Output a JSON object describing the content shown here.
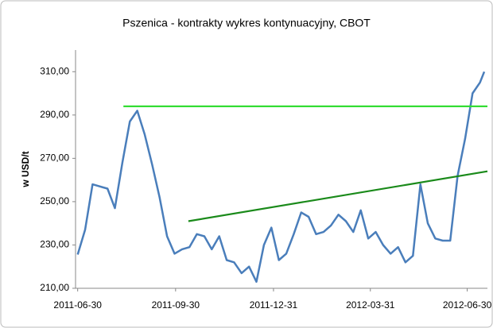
{
  "chart_data": {
    "type": "line",
    "title": "Pszenica - kontrakty wykres kontynuacyjny, CBOT",
    "y_label": "w USD/t",
    "xlim": [
      "2011-06-28",
      "2012-07-19"
    ],
    "xticks": [
      "2011-06-30",
      "2011-09-30",
      "2011-12-31",
      "2012-03-31",
      "2012-06-30"
    ],
    "ylim": [
      210,
      320
    ],
    "yticks": [
      {
        "value": 210,
        "label": "210,00"
      },
      {
        "value": 230,
        "label": "230,00"
      },
      {
        "value": 250,
        "label": "250,00"
      },
      {
        "value": 270,
        "label": "270,00"
      },
      {
        "value": 290,
        "label": "290,00"
      },
      {
        "value": 310,
        "label": "310,00"
      }
    ],
    "grid": false,
    "series": [
      {
        "color": "#4a7ebb",
        "x": [
          "2011-06-30",
          "2011-07-07",
          "2011-07-14",
          "2011-07-21",
          "2011-07-28",
          "2011-08-04",
          "2011-08-11",
          "2011-08-18",
          "2011-08-25",
          "2011-09-01",
          "2011-09-08",
          "2011-09-15",
          "2011-09-22",
          "2011-09-29",
          "2011-10-06",
          "2011-10-13",
          "2011-10-20",
          "2011-10-27",
          "2011-11-03",
          "2011-11-10",
          "2011-11-17",
          "2011-11-24",
          "2011-12-01",
          "2011-12-08",
          "2011-12-15",
          "2011-12-22",
          "2011-12-29",
          "2012-01-05",
          "2012-01-12",
          "2012-01-19",
          "2012-01-26",
          "2012-02-02",
          "2012-02-09",
          "2012-02-16",
          "2012-02-23",
          "2012-03-01",
          "2012-03-08",
          "2012-03-15",
          "2012-03-22",
          "2012-03-29",
          "2012-04-05",
          "2012-04-12",
          "2012-04-19",
          "2012-04-26",
          "2012-05-03",
          "2012-05-10",
          "2012-05-17",
          "2012-05-24",
          "2012-05-31",
          "2012-06-07",
          "2012-06-14",
          "2012-06-21",
          "2012-06-28",
          "2012-07-05",
          "2012-07-12",
          "2012-07-16"
        ],
        "values": [
          225.6,
          237,
          258,
          257,
          256,
          247,
          268,
          287,
          292,
          281,
          267,
          252,
          234,
          226,
          228,
          229,
          235,
          234,
          228,
          234,
          223,
          222,
          217,
          220,
          213,
          230,
          238,
          223,
          226,
          235,
          245,
          243,
          235,
          236,
          239,
          244,
          241,
          236,
          246,
          233,
          236,
          230,
          226,
          229,
          222,
          225,
          258,
          240,
          233,
          232,
          232,
          262,
          279,
          300,
          305,
          310
        ]
      },
      {
        "color": "#33dd33",
        "x": [
          "2011-08-12",
          "2012-07-19"
        ],
        "values": [
          294,
          294
        ]
      },
      {
        "color": "#1a8a1a",
        "x": [
          "2011-10-12",
          "2012-07-19"
        ],
        "values": [
          241,
          264
        ]
      }
    ]
  }
}
